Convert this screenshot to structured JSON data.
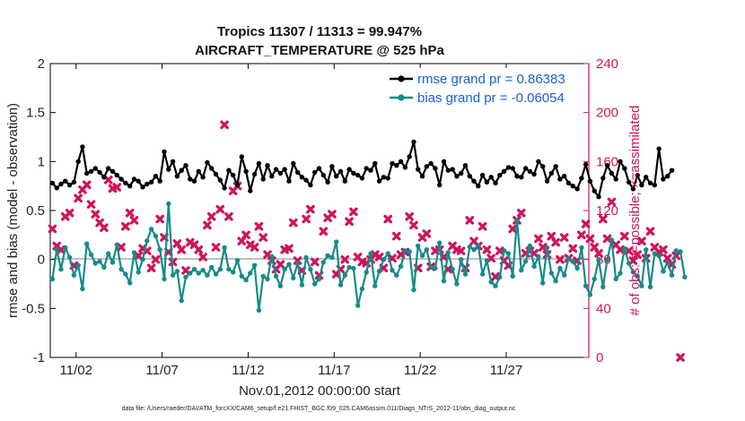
{
  "chart_data": {
    "type": "line",
    "title_line1": "Tropics 11307 / 11313 = 99.947%",
    "title_line2": "AIRCRAFT_TEMPERATURE @ 525 hPa",
    "xlabel": "Nov.01,2012 00:00:00 start",
    "ylabel_left": "rmse and bias (model - observation)",
    "ylabel_right": "# of obs: o=possible; ×=assimilated",
    "footer": "data file: /Users/raeder/DAI/ATM_forcXX/CAM6_setup/f.e21.FHIST_BGC.f09_025.CAM6assim.011/Diags_NTrS_2012-11/obs_diag_output.nc",
    "ylim_left": [
      -1,
      2
    ],
    "ylim_right": [
      0,
      240
    ],
    "xlim_days": [
      0.5,
      31.8
    ],
    "x_ticks": [
      {
        "day": 2,
        "label": "11/02"
      },
      {
        "day": 7,
        "label": "11/07"
      },
      {
        "day": 12,
        "label": "11/12"
      },
      {
        "day": 17,
        "label": "11/17"
      },
      {
        "day": 22,
        "label": "11/22"
      },
      {
        "day": 27,
        "label": "11/27"
      }
    ],
    "y_ticks_left": [
      "-1",
      "-0.5",
      "0",
      "0.5",
      "1",
      "1.5",
      "2"
    ],
    "y_ticks_right": [
      "0",
      "40",
      "80",
      "120",
      "160",
      "200",
      "240"
    ],
    "x_start_day": 0.625,
    "x_step_day": 0.25,
    "series": [
      {
        "name": "rmse grand pr = 0.86383",
        "color": "#000000",
        "values": [
          0.78,
          0.73,
          0.77,
          0.8,
          0.76,
          0.79,
          1.0,
          1.15,
          0.88,
          0.9,
          0.93,
          0.89,
          0.84,
          0.93,
          0.9,
          0.86,
          0.82,
          0.78,
          0.75,
          0.82,
          0.8,
          0.74,
          0.77,
          0.79,
          0.85,
          0.8,
          1.1,
          0.92,
          1.0,
          0.85,
          0.91,
          0.96,
          0.82,
          0.8,
          0.9,
          0.84,
          0.99,
          0.93,
          0.87,
          0.81,
          0.73,
          0.91,
          0.86,
          0.76,
          1.05,
          0.9,
          0.7,
          0.87,
          0.98,
          0.82,
          0.96,
          0.85,
          0.92,
          0.88,
          0.92,
          0.8,
          0.98,
          0.89,
          0.84,
          0.81,
          0.76,
          0.89,
          0.93,
          0.86,
          0.79,
          0.95,
          0.85,
          0.9,
          0.8,
          0.92,
          0.88,
          0.86,
          0.83,
          0.93,
          0.91,
          0.98,
          0.8,
          0.84,
          0.83,
          0.98,
          0.96,
          1.0,
          0.94,
          1.05,
          1.2,
          0.92,
          0.85,
          0.95,
          0.98,
          0.93,
          0.76,
          1.0,
          0.91,
          0.92,
          0.85,
          0.88,
          0.96,
          0.85,
          0.8,
          0.75,
          0.86,
          0.79,
          0.84,
          0.78,
          0.86,
          0.9,
          0.94,
          0.93,
          0.85,
          0.84,
          0.93,
          0.9,
          0.87,
          1.0,
          0.95,
          0.8,
          0.88,
          0.95,
          0.82,
          0.85,
          0.78,
          0.75,
          0.72,
          0.83,
          0.97,
          0.8,
          0.7,
          0.64,
          0.83,
          0.96,
          0.88,
          0.82,
          1.0,
          0.93,
          0.79,
          0.72,
          0.86,
          0.76,
          0.84,
          0.78,
          0.76,
          1.13,
          0.82,
          0.85,
          0.91
        ]
      },
      {
        "name": "bias grand pr = -0.06054",
        "color": "#168a8a",
        "values": [
          -0.2,
          0.1,
          -0.1,
          0.12,
          0.02,
          -0.16,
          -0.06,
          -0.3,
          0.16,
          0.05,
          -0.04,
          -0.02,
          -0.08,
          0.06,
          -0.03,
          0.15,
          -0.1,
          -0.15,
          -0.24,
          0.07,
          -0.13,
          0.0,
          0.19,
          0.31,
          0.24,
          0.1,
          -0.2,
          0.57,
          -0.16,
          -0.12,
          -0.42,
          -0.18,
          -0.14,
          -0.1,
          -0.14,
          -0.11,
          -0.16,
          -0.08,
          -0.15,
          -0.1,
          0.12,
          -0.1,
          -0.13,
          -0.01,
          -0.17,
          -0.21,
          -0.14,
          -0.06,
          -0.52,
          -0.17,
          -0.2,
          0.03,
          -0.17,
          -0.27,
          -0.1,
          -0.05,
          -0.19,
          -0.04,
          -0.26,
          0.02,
          -0.1,
          -0.25,
          -0.2,
          -0.03,
          0.04,
          0.02,
          0.18,
          -0.26,
          -0.16,
          -0.08,
          -0.09,
          -0.47,
          -0.3,
          -0.13,
          0.06,
          -0.27,
          -0.12,
          0.0,
          0.06,
          -0.11,
          -0.16,
          -0.07,
          0.09,
          0.08,
          -0.31,
          0.14,
          0.04,
          0.1,
          -0.08,
          -0.09,
          0.17,
          -0.22,
          0.07,
          -0.1,
          -0.25,
          0.0,
          -0.15,
          0.13,
          0.1,
          0.14,
          -0.15,
          -0.01,
          -0.23,
          -0.27,
          -0.18,
          0.09,
          0.06,
          -0.17,
          0.4,
          -0.11,
          -0.02,
          0.14,
          -0.07,
          0.03,
          -0.24,
          0.12,
          -0.14,
          -0.22,
          -0.09,
          -0.16,
          0.01,
          -0.02,
          -0.09,
          0.12,
          -0.27,
          -0.36,
          -0.2,
          0.0,
          -0.28,
          0.0,
          0.2,
          -0.2,
          -0.14,
          0.11,
          -0.04,
          -0.13,
          -0.17,
          -0.27,
          0.1,
          -0.28,
          0.06,
          0.04,
          -0.12,
          -0.03,
          -0.16,
          0.09,
          0.08,
          -0.18
        ]
      }
    ],
    "assimilated_obs": {
      "name": "assimilated",
      "color": "#d0135a",
      "values": [
        105,
        91,
        88,
        115,
        118,
        75,
        130,
        137,
        141,
        125,
        117,
        110,
        106,
        145,
        138,
        139,
        90,
        107,
        118,
        112,
        83,
        89,
        87,
        73,
        80,
        113,
        98,
        86,
        78,
        93,
        88,
        71,
        94,
        92,
        88,
        82,
        108,
        115,
        90,
        121,
        190,
        115,
        136,
        140,
        95,
        100,
        92,
        90,
        107,
        98,
        84,
        79,
        72,
        76,
        88,
        89,
        110,
        79,
        71,
        113,
        121,
        78,
        67,
        103,
        114,
        117,
        68,
        72,
        80,
        111,
        119,
        82,
        78,
        77,
        80,
        84,
        82,
        73,
        113,
        81,
        99,
        84,
        86,
        115,
        108,
        73,
        98,
        101,
        74,
        87,
        88,
        82,
        72,
        91,
        88,
        87,
        73,
        112,
        95,
        91,
        107,
        88,
        81,
        66,
        87,
        79,
        75,
        105,
        112,
        118,
        85,
        87,
        85,
        97,
        90,
        84,
        99,
        94,
        80,
        98,
        81,
        89,
        79,
        100,
        109,
        97,
        90,
        85,
        113,
        97,
        127,
        92,
        88,
        99,
        87,
        79,
        84,
        95,
        81,
        103,
        90,
        86,
        88,
        81,
        76,
        83,
        0
      ]
    }
  },
  "legend": {
    "rmse_label": "rmse grand pr = 0.86383",
    "bias_label": "bias grand pr = -0.06054"
  },
  "colors": {
    "rmse": "#000000",
    "bias": "#168a8a",
    "obs": "#d0135a",
    "zero_line": "#bfbfbf"
  }
}
